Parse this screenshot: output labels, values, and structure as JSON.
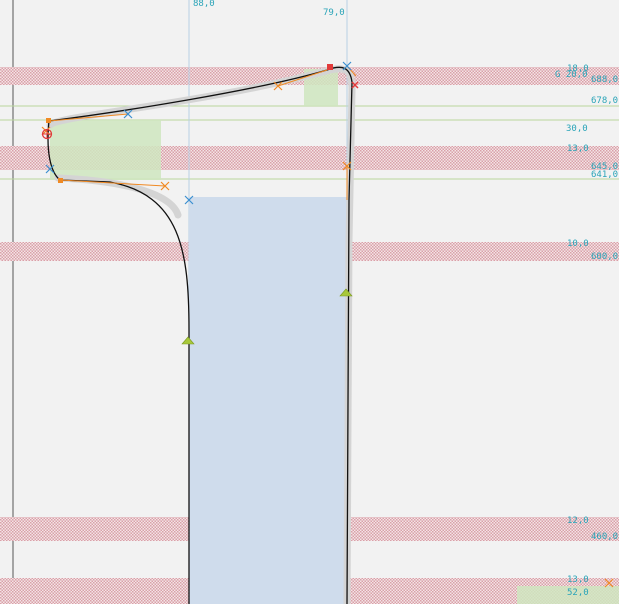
{
  "colors": {
    "background": "#f2f2f2",
    "zone_hatch": "#d9a0a8",
    "glyph_fill": "#cfdcec",
    "glyph_outline": "#111111",
    "measure_fill": "#cfe6c0",
    "guide_line": "#9bbf7a",
    "metric_text": "#2aa4b8",
    "offcurve": "#f08a24",
    "oncurve_blue": "#3b8fd0",
    "oncurve_red": "#e23a3a",
    "anchor_triangle": "#a8c83a"
  },
  "labels": {
    "top_left_x": "88,0",
    "top_right_x": "79,0",
    "zone_688_width": "18,0",
    "zone_688_sub": "G 20,0",
    "zone_688_value": "688,0",
    "guide_678": "678,0",
    "measure_30": "30,0",
    "zone_645_width": "13,0",
    "zone_645_value": "645,0",
    "zone_641_value": "641,0",
    "zone_600_width": "10,0",
    "zone_600_value": "600,0",
    "zone_460_width": "12,0",
    "zone_460_value": "460,0",
    "zone_bottom_width": "13,0",
    "zone_bottom_value": "52,0"
  },
  "icons": {
    "start_point": "start-point-icon",
    "anchor": "anchor-triangle-icon",
    "oncurve": "oncurve-point-icon",
    "offcurve": "offcurve-handle-icon"
  }
}
